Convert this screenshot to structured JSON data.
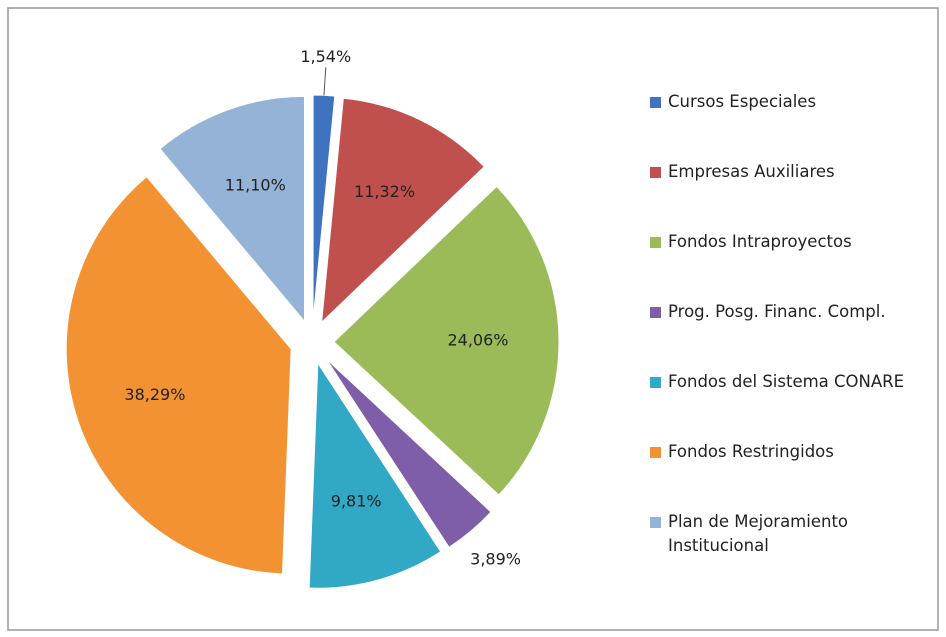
{
  "chart_data": {
    "type": "pie",
    "categories": [
      "Cursos Especiales",
      "Empresas Auxiliares",
      "Fondos Intraproyectos",
      "Prog. Posg. Financ. Compl.",
      "Fondos del Sistema CONARE",
      "Fondos Restringidos",
      "Plan de Mejoramiento Institucional"
    ],
    "values": [
      1.54,
      11.32,
      24.06,
      3.89,
      9.81,
      38.29,
      11.1
    ],
    "value_labels": [
      "1,54%",
      "11,32%",
      "24,06%",
      "3,89%",
      "9,81%",
      "38,29%",
      "11,10%"
    ],
    "colors": [
      "#3f73c0",
      "#c0504d",
      "#9bbb59",
      "#7e5ea8",
      "#31a8c6",
      "#f39232",
      "#95b3d7"
    ],
    "legend": "right"
  }
}
